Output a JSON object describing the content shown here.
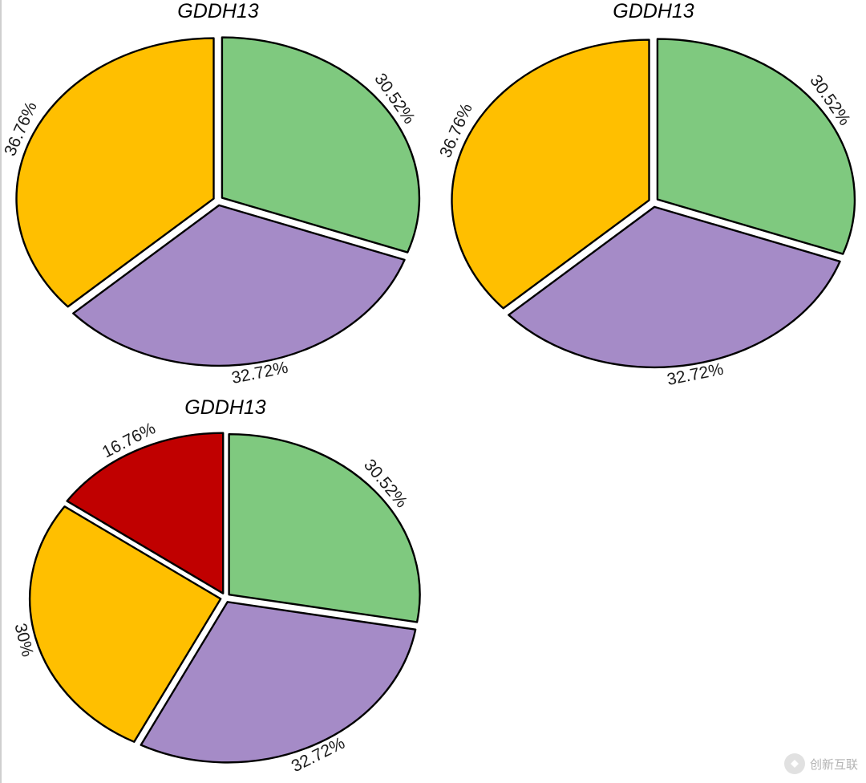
{
  "chart_data": [
    {
      "type": "pie",
      "title": "GDDH13",
      "slices": [
        {
          "label": "30.52%",
          "value": 30.52,
          "color": "#7FC97F"
        },
        {
          "label": "32.72%",
          "value": 32.72,
          "color": "#A58BC7"
        },
        {
          "label": "36.76%",
          "value": 36.76,
          "color": "#FFBF00"
        }
      ]
    },
    {
      "type": "pie",
      "title": "GDDH13",
      "slices": [
        {
          "label": "30.52%",
          "value": 30.52,
          "color": "#7FC97F"
        },
        {
          "label": "32.72%",
          "value": 32.72,
          "color": "#A58BC7"
        },
        {
          "label": "36.76%",
          "value": 36.76,
          "color": "#FFBF00"
        }
      ]
    },
    {
      "type": "pie",
      "title": "GDDH13",
      "slices": [
        {
          "label": "30.52%",
          "value": 30.52,
          "color": "#7FC97F"
        },
        {
          "label": "32.72%",
          "value": 32.72,
          "color": "#A58BC7"
        },
        {
          "label": "30%",
          "value": 30,
          "color": "#FFBF00"
        },
        {
          "label": "16.76%",
          "value": 16.76,
          "color": "#C00000"
        }
      ]
    }
  ],
  "watermark": {
    "text": "创新互联",
    "icon": "logo-icon"
  }
}
